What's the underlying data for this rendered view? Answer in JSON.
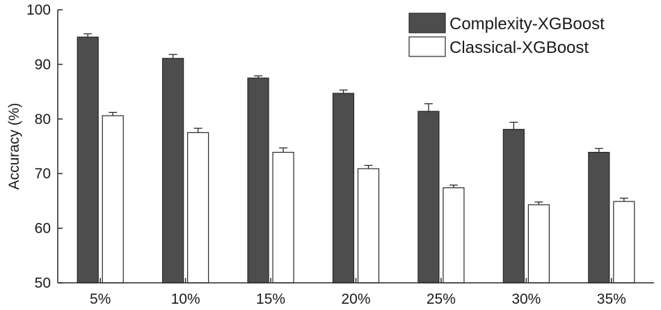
{
  "chart_data": {
    "type": "bar",
    "xlabel": "",
    "ylabel": "Accuracy (%)",
    "ylim": [
      50,
      100
    ],
    "yticks": [
      "50",
      "60",
      "70",
      "80",
      "90",
      "100"
    ],
    "categories": [
      "5%",
      "10%",
      "15%",
      "20%",
      "25%",
      "30%",
      "35%"
    ],
    "series": [
      {
        "name": "Complexity-XGBoost",
        "color": "#4d4d4d",
        "values": [
          95.0,
          91.1,
          87.5,
          84.7,
          81.4,
          78.1,
          73.9
        ],
        "errors": [
          0.6,
          0.7,
          0.4,
          0.6,
          1.4,
          1.3,
          0.7
        ]
      },
      {
        "name": "Classical-XGBoost",
        "color": "#ffffff",
        "values": [
          80.6,
          77.5,
          73.9,
          70.9,
          67.4,
          64.3,
          64.9
        ],
        "errors": [
          0.6,
          0.8,
          0.8,
          0.6,
          0.5,
          0.5,
          0.6
        ]
      }
    ],
    "grid": false,
    "legend_position": "top-right"
  }
}
